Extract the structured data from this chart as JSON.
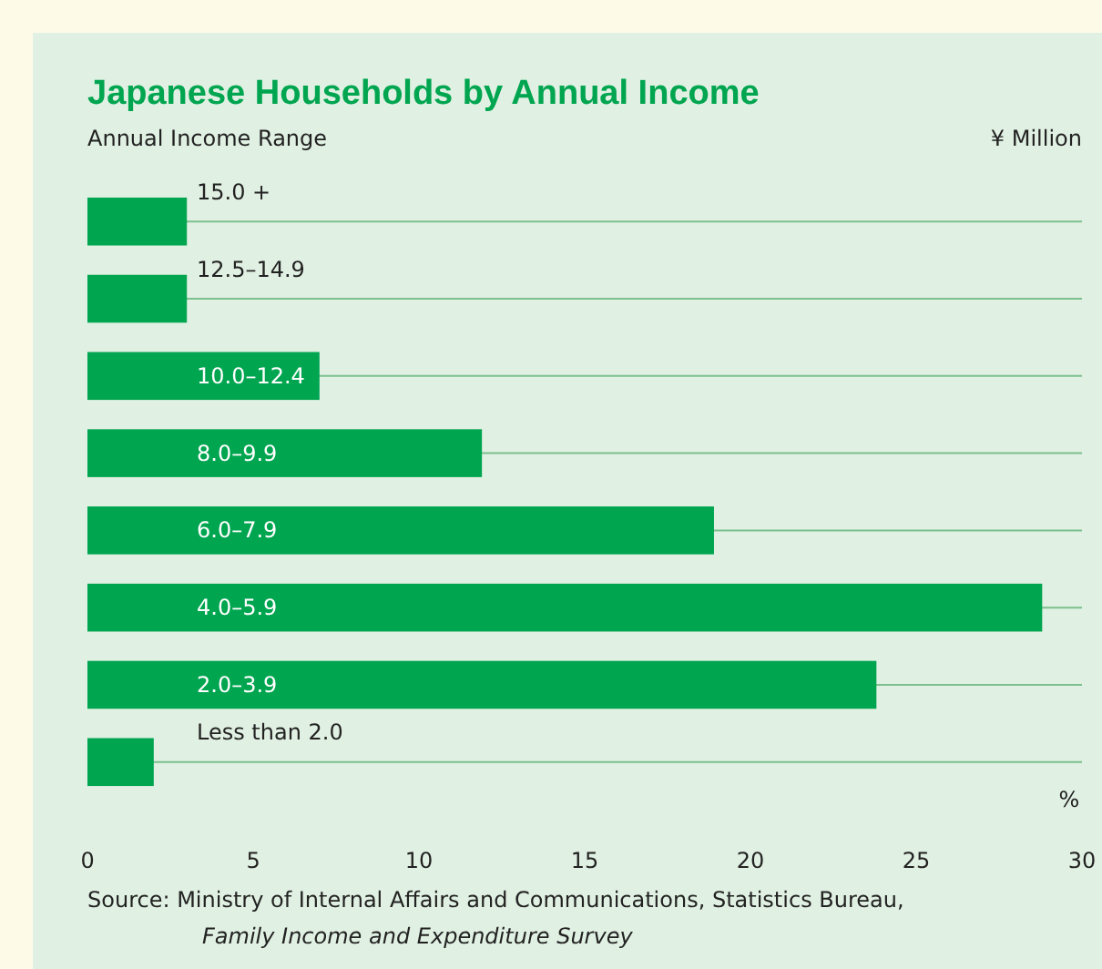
{
  "chart_data": {
    "type": "bar",
    "orientation": "horizontal",
    "title": "Japanese Households by Annual Income",
    "ylabel": "Annual Income Range",
    "xlabel": "%",
    "categories": [
      "15.0 +",
      "12.5–14.9",
      "10.0–12.4",
      "8.0–9.9",
      "6.0–7.9",
      "4.0–5.9",
      "2.0–3.9",
      "Less than 2.0"
    ],
    "values": [
      3.0,
      3.0,
      7.0,
      11.9,
      18.9,
      28.8,
      23.8,
      2.0
    ],
    "color": "#00a550",
    "xlim": [
      0,
      30
    ],
    "xticks": [
      0,
      5,
      10,
      15,
      20,
      25,
      30
    ],
    "grid": "y",
    "annotations": [
      "¥ Million",
      "Source:  Ministry of Internal Affairs and Communications, Statistics Bureau,",
      "Family Income and Expenditure Survey"
    ]
  }
}
